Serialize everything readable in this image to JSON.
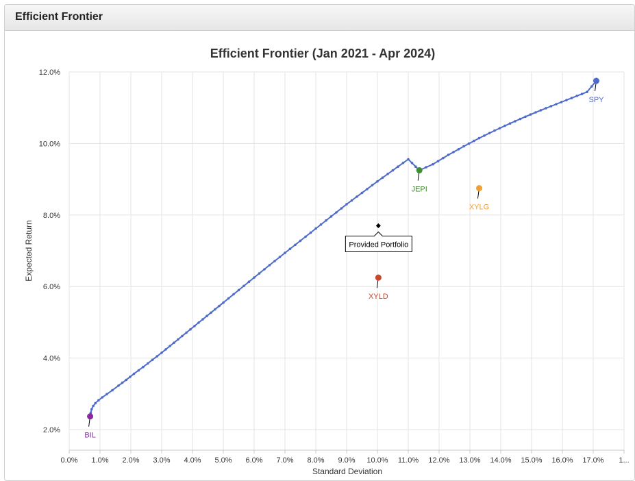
{
  "panel": {
    "title": "Efficient Frontier"
  },
  "chart_data": {
    "type": "scatter",
    "title": "Efficient Frontier (Jan 2021 - Apr 2024)",
    "xlabel": "Standard Deviation",
    "ylabel": "Expected Return",
    "xlim": [
      0,
      18
    ],
    "ylim": [
      1.5,
      12
    ],
    "x_ticks": [
      {
        "value": 0,
        "label": "0.0%"
      },
      {
        "value": 1,
        "label": "1.0%"
      },
      {
        "value": 2,
        "label": "2.0%"
      },
      {
        "value": 3,
        "label": "3.0%"
      },
      {
        "value": 4,
        "label": "4.0%"
      },
      {
        "value": 5,
        "label": "5.0%"
      },
      {
        "value": 6,
        "label": "6.0%"
      },
      {
        "value": 7,
        "label": "7.0%"
      },
      {
        "value": 8,
        "label": "8.0%"
      },
      {
        "value": 9,
        "label": "9.0%"
      },
      {
        "value": 10,
        "label": "10.0%"
      },
      {
        "value": 11,
        "label": "11.0%"
      },
      {
        "value": 12,
        "label": "12.0%"
      },
      {
        "value": 13,
        "label": "13.0%"
      },
      {
        "value": 14,
        "label": "14.0%"
      },
      {
        "value": 15,
        "label": "15.0%"
      },
      {
        "value": 16,
        "label": "16.0%"
      },
      {
        "value": 17,
        "label": "17.0%"
      },
      {
        "value": 18,
        "label": "1..."
      }
    ],
    "y_ticks": [
      {
        "value": 2,
        "label": "2.0%"
      },
      {
        "value": 4,
        "label": "4.0%"
      },
      {
        "value": 6,
        "label": "6.0%"
      },
      {
        "value": 8,
        "label": "8.0%"
      },
      {
        "value": 10,
        "label": "10.0%"
      },
      {
        "value": 12,
        "label": "12.0%"
      }
    ],
    "grid": true,
    "frontier": {
      "name": "Efficient Frontier",
      "color": "#4f6bc9",
      "x": [
        0.68,
        0.7,
        0.73,
        0.78,
        0.85,
        0.95,
        1.07,
        1.22,
        1.4,
        1.6,
        1.85,
        2.1,
        2.4,
        2.7,
        3.0,
        3.4,
        3.8,
        4.2,
        4.6,
        5.0,
        5.5,
        6.0,
        6.5,
        7.0,
        7.5,
        8.0,
        8.5,
        9.0,
        9.5,
        10.0,
        10.5,
        11.0,
        11.36,
        11.8,
        12.3,
        12.8,
        13.3,
        13.8,
        14.3,
        14.8,
        15.3,
        15.8,
        16.3,
        16.8,
        17.1
      ],
      "y": [
        2.37,
        2.47,
        2.57,
        2.66,
        2.74,
        2.82,
        2.9,
        2.99,
        3.1,
        3.23,
        3.39,
        3.56,
        3.75,
        3.95,
        4.15,
        4.43,
        4.71,
        4.99,
        5.27,
        5.55,
        5.9,
        6.25,
        6.6,
        6.94,
        7.28,
        7.62,
        7.96,
        8.3,
        8.62,
        8.94,
        9.25,
        9.56,
        9.25,
        9.42,
        9.68,
        9.92,
        10.15,
        10.36,
        10.56,
        10.75,
        10.93,
        11.1,
        11.27,
        11.44,
        11.75
      ]
    },
    "points": [
      {
        "name": "SPY",
        "x": 17.1,
        "y": 11.75,
        "color": "#4f6bc9",
        "label_pos": "below"
      },
      {
        "name": "JEPI",
        "x": 11.36,
        "y": 9.25,
        "color": "#3e8e2f",
        "label_pos": "below"
      },
      {
        "name": "XYLG",
        "x": 13.3,
        "y": 8.75,
        "color": "#f0a030",
        "label_pos": "below"
      },
      {
        "name": "XYLD",
        "x": 10.03,
        "y": 6.25,
        "color": "#c8462b",
        "label_pos": "below"
      },
      {
        "name": "BIL",
        "x": 0.68,
        "y": 2.37,
        "color": "#8b2aa0",
        "label_pos": "below"
      }
    ],
    "provided_portfolio": {
      "name": "Provided Portfolio",
      "x": 10.03,
      "y": 7.7,
      "color": "#000000"
    }
  }
}
